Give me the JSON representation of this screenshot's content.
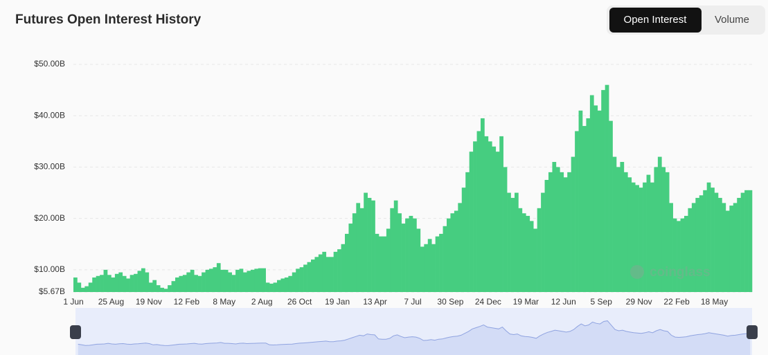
{
  "chart_data": {
    "type": "bar",
    "title": "Futures Open Interest History",
    "toggle": [
      "Open Interest",
      "Volume"
    ],
    "watermark": "coinglass",
    "color": "#46cd80",
    "grid": true,
    "ylim": [
      5.67,
      50
    ],
    "yticks": [
      {
        "value": 5.67,
        "label": "$5.67B"
      },
      {
        "value": 10,
        "label": "$10.00B"
      },
      {
        "value": 20,
        "label": "$20.00B"
      },
      {
        "value": 30,
        "label": "$30.00B"
      },
      {
        "value": 40,
        "label": "$40.00B"
      },
      {
        "value": 50,
        "label": "$50.00B"
      }
    ],
    "categories": [
      "1 Jun",
      null,
      null,
      null,
      null,
      null,
      null,
      null,
      null,
      null,
      "25 Aug",
      null,
      null,
      null,
      null,
      null,
      null,
      null,
      null,
      null,
      "19 Nov",
      null,
      null,
      null,
      null,
      null,
      null,
      null,
      null,
      null,
      "12 Feb",
      null,
      null,
      null,
      null,
      null,
      null,
      null,
      null,
      null,
      "8 May",
      null,
      null,
      null,
      null,
      null,
      null,
      null,
      null,
      null,
      "2 Aug",
      null,
      null,
      null,
      null,
      null,
      null,
      null,
      null,
      null,
      "26 Oct",
      null,
      null,
      null,
      null,
      null,
      null,
      null,
      null,
      null,
      "19 Jan",
      null,
      null,
      null,
      null,
      null,
      null,
      null,
      null,
      null,
      "13 Apr",
      null,
      null,
      null,
      null,
      null,
      null,
      null,
      null,
      null,
      "7 Jul",
      null,
      null,
      null,
      null,
      null,
      null,
      null,
      null,
      null,
      "30 Sep",
      null,
      null,
      null,
      null,
      null,
      null,
      null,
      null,
      null,
      "24 Dec",
      null,
      null,
      null,
      null,
      null,
      null,
      null,
      null,
      null,
      "19 Mar",
      null,
      null,
      null,
      null,
      null,
      null,
      null,
      null,
      null,
      "12 Jun",
      null,
      null,
      null,
      null,
      null,
      null,
      null,
      null,
      null,
      "5 Sep",
      null,
      null,
      null,
      null,
      null,
      null,
      null,
      null,
      null,
      "29 Nov",
      null,
      null,
      null,
      null,
      null,
      null,
      null,
      null,
      null,
      "22 Feb",
      null,
      null,
      null,
      null,
      null,
      null,
      null,
      null,
      null,
      "18 May",
      null,
      null,
      null,
      null,
      null,
      null,
      null,
      null,
      null
    ],
    "values": [
      8.5,
      7.5,
      6.5,
      6.8,
      7.5,
      8.5,
      8.8,
      9.0,
      10.0,
      9.0,
      8.5,
      9.2,
      9.5,
      8.8,
      8.3,
      9.0,
      9.2,
      9.8,
      10.3,
      9.5,
      7.5,
      8.0,
      7.0,
      6.5,
      6.3,
      7.0,
      7.8,
      8.5,
      8.8,
      9.0,
      9.5,
      10.0,
      9.0,
      8.8,
      9.5,
      10.0,
      10.2,
      10.5,
      11.3,
      10.0,
      10.0,
      9.5,
      9.0,
      10.0,
      10.2,
      9.5,
      9.8,
      10.0,
      10.2,
      10.3,
      10.3,
      7.5,
      7.3,
      7.5,
      8.0,
      8.3,
      8.5,
      8.8,
      9.5,
      10.2,
      10.5,
      11.0,
      11.5,
      12.0,
      12.5,
      13.0,
      13.5,
      12.5,
      12.5,
      13.5,
      14.0,
      15.0,
      17.0,
      19.0,
      21.0,
      23.0,
      22.0,
      25.0,
      24.0,
      23.5,
      17.0,
      16.5,
      16.5,
      18.0,
      22.0,
      23.5,
      21.0,
      19.0,
      20.0,
      20.5,
      20.0,
      18.0,
      14.5,
      15.0,
      16.0,
      15.0,
      16.5,
      17.0,
      18.5,
      20.0,
      21.0,
      21.5,
      23.0,
      26.0,
      29.0,
      33.0,
      35.0,
      37.0,
      39.5,
      36.0,
      35.0,
      34.0,
      33.0,
      36.0,
      30.0,
      25.0,
      24.0,
      25.0,
      22.0,
      21.0,
      20.5,
      19.5,
      18.0,
      22.0,
      25.0,
      27.5,
      29.0,
      31.0,
      30.0,
      29.0,
      28.0,
      29.0,
      32.0,
      37.0,
      41.0,
      38.0,
      39.5,
      44.0,
      42.0,
      41.0,
      45.0,
      46.0,
      39.0,
      32.0,
      30.0,
      31.0,
      29.0,
      28.0,
      27.0,
      26.5,
      26.0,
      27.0,
      28.5,
      27.0,
      30.0,
      32.0,
      30.0,
      29.0,
      23.0,
      20.0,
      19.5,
      20.0,
      20.5,
      22.0,
      23.0,
      24.0,
      24.5,
      25.5,
      27.0,
      26.0,
      25.0,
      24.0,
      23.0,
      21.5,
      22.5,
      23.0,
      24.0,
      25.0,
      25.5,
      25.5
    ]
  }
}
